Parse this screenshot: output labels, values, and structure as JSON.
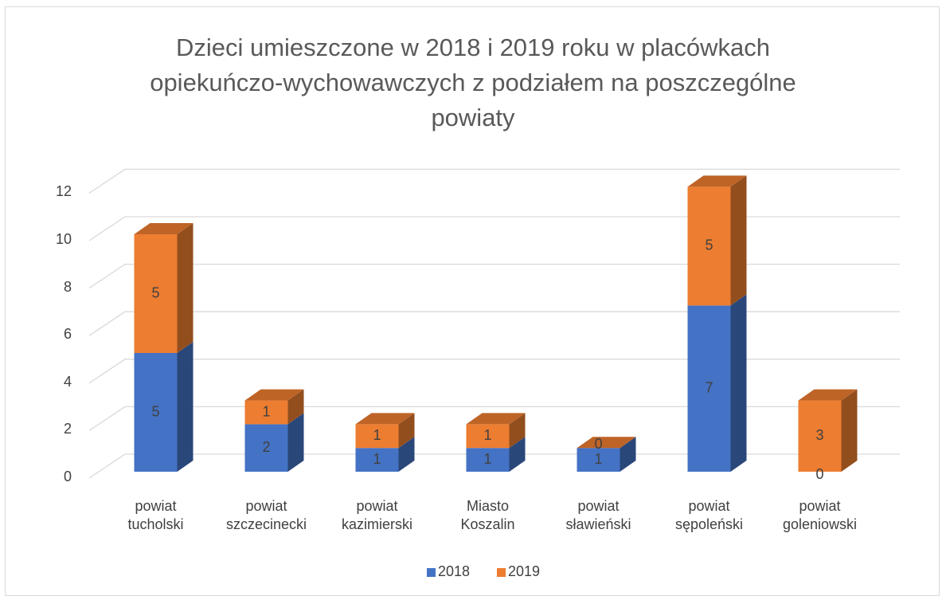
{
  "chart_data": {
    "type": "bar3d_stacked",
    "title": "Dzieci umieszczone w 2018 i 2019 roku w placówkach opiekuńczo-wychowawczych z podziałem na poszczególne powiaty",
    "categories": [
      "powiat tucholski",
      "powiat szczecinecki",
      "powiat kazimierski",
      "Miasto Koszalin",
      "powiat sławieński",
      "powiat sępoleński",
      "powiat goleniowski"
    ],
    "series": [
      {
        "name": "2018",
        "color": "#4472c4",
        "values": [
          5,
          2,
          1,
          1,
          1,
          7,
          0
        ]
      },
      {
        "name": "2019",
        "color": "#ed7d31",
        "values": [
          5,
          1,
          1,
          1,
          0,
          5,
          3
        ]
      }
    ],
    "ylim": [
      0,
      12
    ],
    "yticks": [
      0,
      2,
      4,
      6,
      8,
      10,
      12
    ],
    "grid": true,
    "legend": "bottom"
  }
}
